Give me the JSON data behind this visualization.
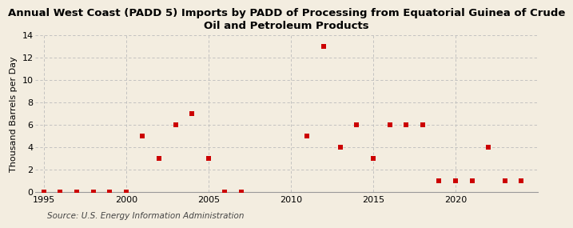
{
  "title": "Annual West Coast (PADD 5) Imports by PADD of Processing from Equatorial Guinea of Crude\nOil and Petroleum Products",
  "ylabel": "Thousand Barrels per Day",
  "source": "Source: U.S. Energy Information Administration",
  "background_color": "#f3ede0",
  "plot_background_color": "#f3ede0",
  "marker_color": "#cc0000",
  "marker": "s",
  "marker_size": 4,
  "xlim": [
    1994.5,
    2025
  ],
  "ylim": [
    0,
    14
  ],
  "yticks": [
    0,
    2,
    4,
    6,
    8,
    10,
    12,
    14
  ],
  "xticks": [
    1995,
    2000,
    2005,
    2010,
    2015,
    2020
  ],
  "grid_color": "#bbbbbb",
  "years": [
    1995,
    1996,
    1997,
    1998,
    1999,
    2000,
    2001,
    2002,
    2003,
    2004,
    2005,
    2006,
    2007,
    2011,
    2012,
    2013,
    2014,
    2015,
    2016,
    2017,
    2018,
    2019,
    2020,
    2021,
    2022,
    2023,
    2024
  ],
  "values": [
    0,
    0,
    0,
    0,
    0,
    0,
    5,
    3,
    6,
    7,
    3,
    0,
    0,
    5,
    13,
    4,
    6,
    3,
    6,
    6,
    6,
    1,
    1,
    1,
    4,
    1,
    1
  ],
  "title_fontsize": 9.5,
  "label_fontsize": 8,
  "tick_fontsize": 8,
  "source_fontsize": 7.5
}
